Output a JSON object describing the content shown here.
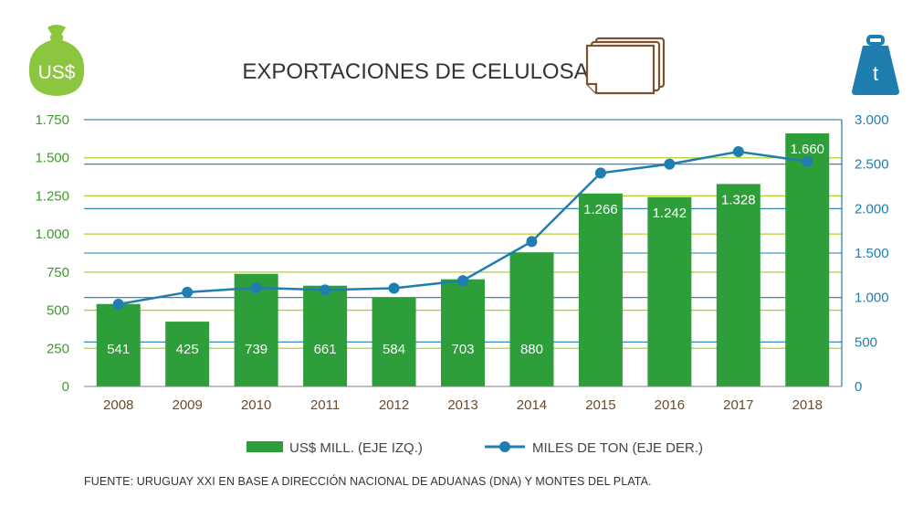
{
  "title": "EXPORTACIONES DE CELULOSA",
  "icons": {
    "left": {
      "name": "money-bag-icon",
      "text": "US$",
      "color": "#8cc63f"
    },
    "center": {
      "name": "paper-stack-icon",
      "color": "#7a5230"
    },
    "right": {
      "name": "weight-icon",
      "text": "t",
      "color": "#1f7db0"
    }
  },
  "colors": {
    "bars": "#2e9e3a",
    "line": "#1f7db0",
    "left_axis": "#3e9a2c",
    "right_axis": "#1f7db0",
    "x_axis": "#6b4a2b",
    "grid_left": "#b5cf2e",
    "grid_right": "#1f7db0"
  },
  "chart_data": {
    "type": "bar+line",
    "categories": [
      "2008",
      "2009",
      "2010",
      "2011",
      "2012",
      "2013",
      "2014",
      "2015",
      "2016",
      "2017",
      "2018"
    ],
    "series": [
      {
        "name": "US$ MILL. (EJE IZQ.)",
        "type": "bar",
        "axis": "left",
        "values": [
          541,
          425,
          739,
          661,
          584,
          703,
          880,
          1266,
          1242,
          1328,
          1660
        ],
        "labels": [
          "541",
          "425",
          "739",
          "661",
          "584",
          "703",
          "880",
          "1.266",
          "1.242",
          "1.328",
          "1.660"
        ]
      },
      {
        "name": "MILES DE TON (EJE DER.)",
        "type": "line",
        "axis": "right",
        "values": [
          925,
          1060,
          1110,
          1085,
          1105,
          1190,
          1630,
          2400,
          2500,
          2640,
          2530
        ]
      }
    ],
    "y_left": {
      "range": [
        0,
        1750
      ],
      "ticks": [
        0,
        250,
        500,
        750,
        1000,
        1250,
        1500,
        1750
      ],
      "tick_labels": [
        "0",
        "250",
        "500",
        "750",
        "1.000",
        "1.250",
        "1.500",
        "1.750"
      ]
    },
    "y_right": {
      "range": [
        0,
        3000
      ],
      "ticks": [
        0,
        500,
        1000,
        1500,
        2000,
        2500,
        3000
      ],
      "tick_labels": [
        "0",
        "500",
        "1.000",
        "1.500",
        "2.000",
        "2.500",
        "3.000"
      ]
    },
    "grid": true,
    "legend_position": "bottom"
  },
  "source": "FUENTE: URUGUAY XXI EN BASE A DIRECCIÓN NACIONAL DE ADUANAS (DNA) Y MONTES DEL PLATA."
}
